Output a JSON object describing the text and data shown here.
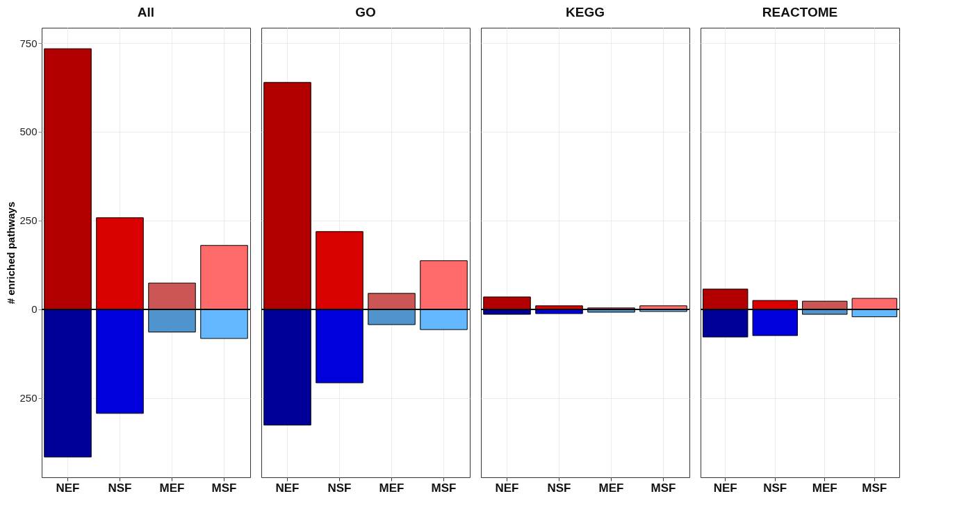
{
  "chart_data": [
    {
      "type": "bar",
      "title": "All",
      "ylabel": "# enriched pathways",
      "categories": [
        "NEF",
        "NSF",
        "MEF",
        "MSF"
      ],
      "stacked": true,
      "grid": true,
      "ylim": [
        -473,
        793
      ],
      "yticks": [
        750,
        500,
        250,
        0,
        {
          "value": -250,
          "label": "250"
        }
      ],
      "ref_lines": [
        {
          "axis": "y",
          "value": 0,
          "color": "#000000"
        }
      ],
      "series": [
        {
          "colors": [
            "#b20000",
            "#d90000",
            "#cc5555",
            "#ff6b6b"
          ],
          "values": [
            734,
            258,
            74,
            180
          ]
        },
        {
          "colors": [
            "#000099",
            "#0000dd",
            "#4f94cd",
            "#63b8ff"
          ],
          "values": [
            -416,
            -293,
            -64,
            -82
          ]
        }
      ]
    },
    {
      "type": "bar",
      "title": "GO",
      "categories": [
        "NEF",
        "NSF",
        "MEF",
        "MSF"
      ],
      "stacked": true,
      "grid": true,
      "tick_labels": "x",
      "ylim": [
        -473,
        793
      ],
      "yticks": [
        750,
        500,
        250,
        0,
        -250
      ],
      "ref_lines": [
        {
          "axis": "y",
          "value": 0,
          "color": "#000000"
        }
      ],
      "series": [
        {
          "colors": [
            "#b20000",
            "#d90000",
            "#cc5555",
            "#ff6b6b"
          ],
          "values": [
            639,
            219,
            45,
            137
          ]
        },
        {
          "colors": [
            "#000099",
            "#0000dd",
            "#4f94cd",
            "#63b8ff"
          ],
          "values": [
            -326,
            -207,
            -43,
            -57
          ]
        }
      ]
    },
    {
      "type": "bar",
      "title": "KEGG",
      "categories": [
        "NEF",
        "NSF",
        "MEF",
        "MSF"
      ],
      "stacked": true,
      "grid": true,
      "tick_labels": "x",
      "ylim": [
        -473,
        793
      ],
      "yticks": [
        750,
        500,
        250,
        0,
        -250
      ],
      "ref_lines": [
        {
          "axis": "y",
          "value": 0,
          "color": "#000000"
        }
      ],
      "series": [
        {
          "colors": [
            "#b20000",
            "#d90000",
            "#cc5555",
            "#ff6b6b"
          ],
          "values": [
            35,
            10,
            4,
            10
          ]
        },
        {
          "colors": [
            "#000099",
            "#0000dd",
            "#4f94cd",
            "#63b8ff"
          ],
          "values": [
            -14,
            -12,
            -8,
            -6
          ]
        }
      ]
    },
    {
      "type": "bar",
      "title": "REACTOME",
      "categories": [
        "NEF",
        "NSF",
        "MEF",
        "MSF"
      ],
      "stacked": true,
      "grid": true,
      "tick_labels": "x",
      "ylim": [
        -473,
        793
      ],
      "yticks": [
        750,
        500,
        250,
        0,
        -250
      ],
      "ref_lines": [
        {
          "axis": "y",
          "value": 0,
          "color": "#000000"
        }
      ],
      "series": [
        {
          "colors": [
            "#b20000",
            "#d90000",
            "#cc5555",
            "#ff6b6b"
          ],
          "values": [
            57,
            25,
            23,
            31
          ]
        },
        {
          "colors": [
            "#000099",
            "#0000dd",
            "#4f94cd",
            "#63b8ff"
          ],
          "values": [
            -78,
            -74,
            -14,
            -21
          ]
        }
      ]
    }
  ]
}
